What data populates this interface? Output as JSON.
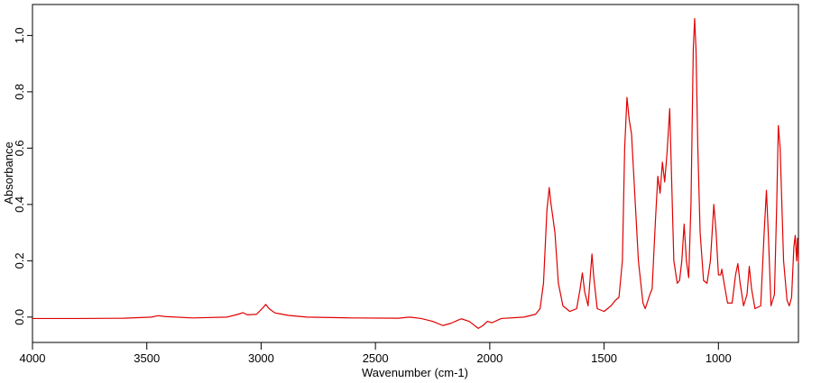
{
  "chart_data": {
    "type": "line",
    "x_label": "Wavenumber (cm-1)",
    "y_label": "Absorbance",
    "xlim": [
      4000,
      650
    ],
    "ylim": [
      -0.09,
      1.11
    ],
    "xticks": [
      4000,
      3500,
      3000,
      2500,
      2000,
      1500,
      1000
    ],
    "yticks": [
      {
        "value": 0,
        "label": "0.0"
      },
      {
        "value": 0.2,
        "label": "0.2"
      },
      {
        "value": 0.4,
        "label": "0.4"
      },
      {
        "value": 0.6,
        "label": "0.6"
      },
      {
        "value": 0.8,
        "label": "0.8"
      },
      {
        "value": 1,
        "label": "1.0"
      }
    ],
    "x": [
      4000,
      3800,
      3600,
      3480,
      3450,
      3420,
      3300,
      3150,
      3100,
      3080,
      3060,
      3020,
      2990,
      2980,
      2965,
      2940,
      2920,
      2880,
      2800,
      2600,
      2400,
      2350,
      2300,
      2250,
      2205,
      2170,
      2125,
      2090,
      2050,
      2030,
      2010,
      1990,
      1950,
      1850,
      1800,
      1780,
      1765,
      1750,
      1740,
      1732,
      1725,
      1715,
      1700,
      1680,
      1650,
      1620,
      1605,
      1595,
      1585,
      1570,
      1560,
      1553,
      1545,
      1530,
      1500,
      1470,
      1450,
      1435,
      1420,
      1410,
      1400,
      1390,
      1380,
      1370,
      1350,
      1330,
      1320,
      1300,
      1290,
      1275,
      1265,
      1255,
      1245,
      1235,
      1225,
      1213,
      1205,
      1195,
      1180,
      1170,
      1160,
      1150,
      1140,
      1130,
      1120,
      1110,
      1104,
      1098,
      1090,
      1080,
      1065,
      1050,
      1035,
      1020,
      1010,
      1000,
      990,
      985,
      975,
      960,
      940,
      925,
      915,
      905,
      890,
      875,
      865,
      855,
      840,
      815,
      800,
      790,
      782,
      770,
      755,
      745,
      738,
      730,
      715,
      700,
      690,
      680,
      670,
      664,
      658,
      654,
      650
    ],
    "series": [
      {
        "color": "#e00000",
        "values": [
          -0.005,
          -0.005,
          -0.004,
          0.0,
          0.005,
          0.002,
          -0.003,
          0.0,
          0.01,
          0.016,
          0.008,
          0.01,
          0.035,
          0.045,
          0.03,
          0.015,
          0.012,
          0.006,
          0.0,
          -0.003,
          -0.004,
          0.0,
          -0.005,
          -0.015,
          -0.03,
          -0.022,
          -0.006,
          -0.015,
          -0.04,
          -0.03,
          -0.015,
          -0.02,
          -0.005,
          0.0,
          0.01,
          0.03,
          0.12,
          0.38,
          0.46,
          0.4,
          0.36,
          0.3,
          0.12,
          0.04,
          0.02,
          0.03,
          0.1,
          0.157,
          0.09,
          0.04,
          0.15,
          0.224,
          0.14,
          0.03,
          0.02,
          0.04,
          0.06,
          0.07,
          0.2,
          0.6,
          0.78,
          0.7,
          0.65,
          0.5,
          0.2,
          0.05,
          0.03,
          0.08,
          0.1,
          0.35,
          0.5,
          0.44,
          0.55,
          0.48,
          0.58,
          0.74,
          0.5,
          0.2,
          0.12,
          0.13,
          0.2,
          0.33,
          0.2,
          0.14,
          0.4,
          0.95,
          1.06,
          0.95,
          0.6,
          0.3,
          0.13,
          0.12,
          0.2,
          0.4,
          0.3,
          0.15,
          0.15,
          0.17,
          0.12,
          0.05,
          0.05,
          0.15,
          0.19,
          0.12,
          0.04,
          0.08,
          0.18,
          0.1,
          0.03,
          0.04,
          0.3,
          0.45,
          0.3,
          0.04,
          0.08,
          0.4,
          0.68,
          0.6,
          0.2,
          0.06,
          0.04,
          0.07,
          0.25,
          0.29,
          0.2,
          0.28,
          0.19
        ]
      }
    ]
  }
}
